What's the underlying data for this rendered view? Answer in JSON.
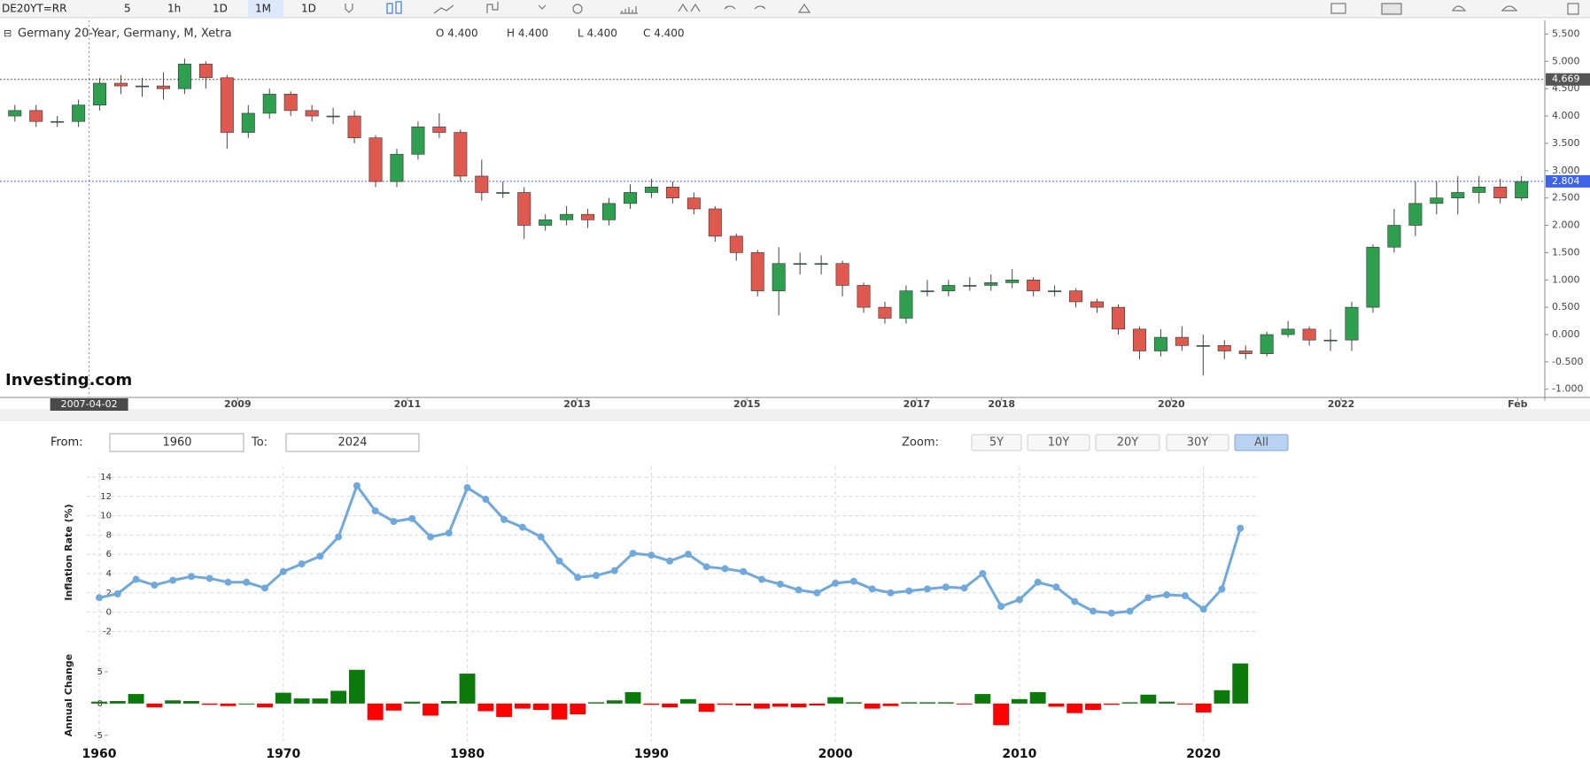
{
  "toolbar": [
    "DE20YT=RR",
    "5",
    "1h",
    "1D",
    "1M",
    "1D"
  ],
  "range": {
    "from_label": "From:",
    "from": "1960",
    "to_label": "To:",
    "to": "2024",
    "zoom_label": "Zoom:",
    "zoom": [
      "5Y",
      "10Y",
      "20Y",
      "30Y",
      "All"
    ]
  },
  "chart_data": [
    {
      "type": "candlestick",
      "title": "Germany 20-Year, Germany, M, Xetra",
      "legend_values": [
        "O 4.400",
        "H 4.400",
        "L 4.400",
        "C 4.400"
      ],
      "watermark": "Investing.com",
      "up_color": "#2e9e4f",
      "down_color": "#e0594f",
      "x": [
        2006.375,
        2006.625,
        2006.875,
        2007.125,
        2007.375,
        2007.625,
        2007.875,
        2008.125,
        2008.375,
        2008.625,
        2008.875,
        2009.125,
        2009.375,
        2009.625,
        2009.875,
        2010.125,
        2010.375,
        2010.625,
        2010.875,
        2011.125,
        2011.375,
        2011.625,
        2011.875,
        2012.125,
        2012.375,
        2012.625,
        2012.875,
        2013.125,
        2013.375,
        2013.625,
        2013.875,
        2014.125,
        2014.375,
        2014.625,
        2014.875,
        2015.125,
        2015.375,
        2015.625,
        2015.875,
        2016.125,
        2016.375,
        2016.625,
        2016.875,
        2017.125,
        2017.375,
        2017.625,
        2017.875,
        2018.125,
        2018.375,
        2018.625,
        2018.875,
        2019.125,
        2019.375,
        2019.625,
        2019.875,
        2020.125,
        2020.375,
        2020.625,
        2020.875,
        2021.125,
        2021.375,
        2021.625,
        2021.875,
        2022.125,
        2022.375,
        2022.625,
        2022.875,
        2023.125,
        2023.375,
        2023.625,
        2023.875,
        2024.125
      ],
      "open": [
        4.0,
        4.1,
        3.9,
        3.9,
        4.2,
        4.6,
        4.55,
        4.55,
        4.5,
        4.95,
        4.7,
        3.7,
        4.05,
        4.4,
        4.1,
        4.0,
        4.0,
        3.6,
        2.8,
        3.3,
        3.8,
        3.7,
        2.9,
        2.6,
        2.6,
        2.0,
        2.1,
        2.2,
        2.1,
        2.4,
        2.6,
        2.7,
        2.5,
        2.3,
        1.8,
        1.5,
        0.8,
        1.3,
        1.3,
        1.3,
        0.9,
        0.5,
        0.3,
        0.8,
        0.8,
        0.9,
        0.9,
        0.95,
        1.0,
        0.8,
        0.8,
        0.6,
        0.5,
        0.1,
        -0.3,
        -0.05,
        -0.2,
        -0.2,
        -0.3,
        -0.35,
        0.0,
        0.1,
        -0.1,
        -0.1,
        0.5,
        1.6,
        2.0,
        2.4,
        2.5,
        2.6,
        2.7,
        2.5
      ],
      "high": [
        4.2,
        4.2,
        4.0,
        4.3,
        4.7,
        4.75,
        4.7,
        4.8,
        5.05,
        5.0,
        4.75,
        4.2,
        4.5,
        4.45,
        4.2,
        4.15,
        4.1,
        3.65,
        3.4,
        3.9,
        4.05,
        3.75,
        3.2,
        2.8,
        2.7,
        2.2,
        2.35,
        2.3,
        2.5,
        2.75,
        2.85,
        2.8,
        2.6,
        2.35,
        1.85,
        1.55,
        1.6,
        1.5,
        1.45,
        1.35,
        0.95,
        0.6,
        0.9,
        1.0,
        1.0,
        1.05,
        1.1,
        1.2,
        1.05,
        0.9,
        0.85,
        0.65,
        0.55,
        0.15,
        0.1,
        0.15,
        0.0,
        -0.1,
        -0.2,
        0.05,
        0.25,
        0.15,
        0.1,
        0.6,
        1.65,
        2.3,
        2.8,
        2.8,
        2.9,
        2.9,
        2.85,
        2.9
      ],
      "low": [
        3.9,
        3.8,
        3.8,
        3.8,
        4.1,
        4.4,
        4.35,
        4.3,
        4.4,
        4.5,
        3.4,
        3.6,
        3.95,
        4.0,
        3.9,
        3.85,
        3.5,
        2.7,
        2.7,
        3.2,
        3.6,
        2.8,
        2.45,
        2.5,
        1.75,
        1.9,
        2.0,
        1.95,
        2.0,
        2.3,
        2.5,
        2.4,
        2.2,
        1.7,
        1.35,
        0.7,
        0.35,
        1.1,
        1.1,
        0.7,
        0.4,
        0.2,
        0.2,
        0.7,
        0.7,
        0.8,
        0.8,
        0.85,
        0.7,
        0.7,
        0.5,
        0.4,
        0.0,
        -0.45,
        -0.4,
        -0.3,
        -0.75,
        -0.45,
        -0.45,
        -0.4,
        -0.05,
        -0.2,
        -0.3,
        -0.3,
        0.4,
        1.5,
        1.8,
        2.2,
        2.2,
        2.4,
        2.4,
        2.45
      ],
      "close": [
        4.1,
        3.9,
        3.9,
        4.2,
        4.6,
        4.55,
        4.55,
        4.5,
        4.95,
        4.7,
        3.7,
        4.05,
        4.4,
        4.1,
        4.0,
        4.0,
        3.6,
        2.8,
        3.3,
        3.8,
        3.7,
        2.9,
        2.6,
        2.6,
        2.0,
        2.1,
        2.2,
        2.1,
        2.4,
        2.6,
        2.7,
        2.5,
        2.3,
        1.8,
        1.5,
        0.8,
        1.3,
        1.3,
        1.3,
        0.9,
        0.5,
        0.3,
        0.8,
        0.8,
        0.9,
        0.9,
        0.95,
        1.0,
        0.8,
        0.8,
        0.6,
        0.5,
        0.1,
        -0.3,
        -0.05,
        -0.2,
        -0.2,
        -0.3,
        -0.35,
        0.0,
        0.1,
        -0.1,
        -0.1,
        0.5,
        1.6,
        2.0,
        2.4,
        2.5,
        2.6,
        2.7,
        2.5,
        2.8
      ],
      "xlim": [
        2006.2,
        2024.4
      ],
      "xticks": [
        2009,
        2011,
        2013,
        2015,
        2017,
        2018,
        2020,
        2022,
        {
          "value": 2024.08,
          "label": "Feb"
        }
      ],
      "crosshair": {
        "value": 2007.25,
        "label": "2007-04-02"
      },
      "ylim": [
        -1.15,
        5.75
      ],
      "yticks": [
        {
          "value": 5.5,
          "label": "5.500"
        },
        {
          "value": 5.0,
          "label": "5.000"
        },
        {
          "value": 4.5,
          "label": "4.500"
        },
        {
          "value": 4.0,
          "label": "4.000"
        },
        {
          "value": 3.5,
          "label": "3.500"
        },
        {
          "value": 3.0,
          "label": "3.000"
        },
        {
          "value": 2.5,
          "label": "2.500"
        },
        {
          "value": 2.0,
          "label": "2.000"
        },
        {
          "value": 1.5,
          "label": "1.500"
        },
        {
          "value": 1.0,
          "label": "1.000"
        },
        {
          "value": 0.5,
          "label": "0.500"
        },
        {
          "value": 0,
          "label": "0.000"
        },
        {
          "value": -0.5,
          "label": "-0.500"
        },
        {
          "value": -1.0,
          "label": "-1.000"
        }
      ],
      "price_lines": [
        {
          "value": 4.669,
          "color": "#555555"
        },
        {
          "value": 2.804,
          "color": "#3f63e8"
        }
      ]
    },
    {
      "type": "line",
      "ylabel": "Inflation Rate (%)",
      "color": "#6fa8dc",
      "grid": true,
      "x": [
        1960,
        1961,
        1962,
        1963,
        1964,
        1965,
        1966,
        1967,
        1968,
        1969,
        1970,
        1971,
        1972,
        1973,
        1974,
        1975,
        1976,
        1977,
        1978,
        1979,
        1980,
        1981,
        1982,
        1983,
        1984,
        1985,
        1986,
        1987,
        1988,
        1989,
        1990,
        1991,
        1992,
        1993,
        1994,
        1995,
        1996,
        1997,
        1998,
        1999,
        2000,
        2001,
        2002,
        2003,
        2004,
        2005,
        2006,
        2007,
        2008,
        2009,
        2010,
        2011,
        2012,
        2013,
        2014,
        2015,
        2016,
        2017,
        2018,
        2019,
        2020,
        2021,
        2022
      ],
      "values": [
        1.5,
        1.9,
        3.4,
        2.8,
        3.3,
        3.7,
        3.5,
        3.1,
        3.1,
        2.5,
        4.2,
        5.0,
        5.8,
        7.8,
        13.1,
        10.5,
        9.4,
        9.7,
        7.8,
        8.2,
        12.9,
        11.7,
        9.6,
        8.8,
        7.8,
        5.3,
        3.6,
        3.8,
        4.3,
        6.1,
        5.9,
        5.3,
        6.0,
        4.7,
        4.5,
        4.2,
        3.4,
        2.9,
        2.3,
        2.0,
        3.0,
        3.2,
        2.4,
        2.0,
        2.2,
        2.4,
        2.6,
        2.5,
        4.0,
        0.6,
        1.3,
        3.1,
        2.6,
        1.1,
        0.1,
        -0.1,
        0.1,
        1.5,
        1.8,
        1.7,
        0.3,
        2.4,
        8.7
      ],
      "xlim": [
        1959.3,
        2023
      ],
      "ylim": [
        -2.7,
        15.1
      ],
      "yticks": [
        -2,
        0,
        2,
        4,
        6,
        8,
        10,
        12,
        14
      ]
    },
    {
      "type": "bar",
      "ylabel": "Annual Change",
      "up_color": "#0b7a0b",
      "down_color": "#ff0000",
      "x": [
        1960,
        1961,
        1962,
        1963,
        1964,
        1965,
        1966,
        1967,
        1968,
        1969,
        1970,
        1971,
        1972,
        1973,
        1974,
        1975,
        1976,
        1977,
        1978,
        1979,
        1980,
        1981,
        1982,
        1983,
        1984,
        1985,
        1986,
        1987,
        1988,
        1989,
        1990,
        1991,
        1992,
        1993,
        1994,
        1995,
        1996,
        1997,
        1998,
        1999,
        2000,
        2001,
        2002,
        2003,
        2004,
        2005,
        2006,
        2007,
        2008,
        2009,
        2010,
        2011,
        2012,
        2013,
        2014,
        2015,
        2016,
        2017,
        2018,
        2019,
        2020,
        2021,
        2022
      ],
      "values": [
        0.3,
        0.4,
        1.5,
        -0.6,
        0.5,
        0.4,
        -0.2,
        -0.4,
        0,
        -0.6,
        1.7,
        0.8,
        0.8,
        2.0,
        5.3,
        -2.6,
        -1.1,
        0.3,
        -1.9,
        0.4,
        4.7,
        -1.2,
        -2.1,
        -0.8,
        -1.0,
        -2.5,
        -1.7,
        0.2,
        0.5,
        1.8,
        -0.2,
        -0.6,
        0.7,
        -1.3,
        -0.2,
        -0.3,
        -0.8,
        -0.5,
        -0.6,
        -0.3,
        1.0,
        0.2,
        -0.8,
        -0.4,
        0.2,
        0.2,
        0.2,
        -0.1,
        1.5,
        -3.4,
        0.7,
        1.8,
        -0.5,
        -1.5,
        -1.0,
        -0.2,
        0.2,
        1.4,
        0.3,
        -0.1,
        -1.4,
        2.1,
        6.3
      ],
      "xlim": [
        1959.3,
        2023
      ],
      "xticks": [
        1960,
        1970,
        1980,
        1990,
        2000,
        2010,
        2020
      ],
      "ylim": [
        -6,
        8.6
      ],
      "yticks": [
        -5,
        0,
        5
      ]
    }
  ]
}
